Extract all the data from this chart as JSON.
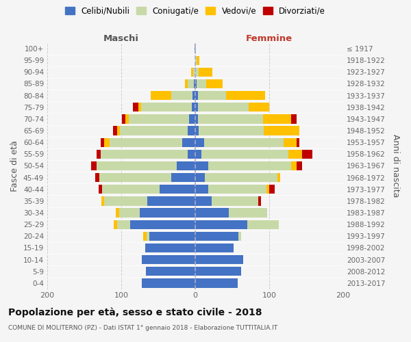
{
  "age_groups": [
    "0-4",
    "5-9",
    "10-14",
    "15-19",
    "20-24",
    "25-29",
    "30-34",
    "35-39",
    "40-44",
    "45-49",
    "50-54",
    "55-59",
    "60-64",
    "65-69",
    "70-74",
    "75-79",
    "80-84",
    "85-89",
    "90-94",
    "95-99",
    "100+"
  ],
  "birth_years": [
    "2013-2017",
    "2008-2012",
    "2003-2007",
    "1998-2002",
    "1993-1997",
    "1988-1992",
    "1983-1987",
    "1978-1982",
    "1973-1977",
    "1968-1972",
    "1963-1967",
    "1958-1962",
    "1953-1957",
    "1948-1952",
    "1943-1947",
    "1938-1942",
    "1933-1937",
    "1928-1932",
    "1923-1927",
    "1918-1922",
    "≤ 1917"
  ],
  "maschi": {
    "celibi": [
      72,
      67,
      72,
      68,
      62,
      88,
      75,
      65,
      48,
      32,
      25,
      10,
      18,
      10,
      8,
      5,
      4,
      2,
      0,
      0,
      1
    ],
    "coniugati": [
      0,
      0,
      0,
      0,
      4,
      18,
      28,
      58,
      78,
      98,
      108,
      118,
      98,
      92,
      82,
      68,
      28,
      8,
      3,
      0,
      0
    ],
    "vedovi": [
      0,
      0,
      0,
      0,
      4,
      4,
      4,
      4,
      0,
      0,
      0,
      0,
      7,
      4,
      4,
      4,
      28,
      4,
      3,
      0,
      0
    ],
    "divorziati": [
      0,
      0,
      0,
      0,
      0,
      0,
      0,
      0,
      5,
      5,
      8,
      5,
      5,
      5,
      5,
      7,
      0,
      0,
      0,
      0,
      0
    ]
  },
  "femmine": {
    "nubili": [
      57,
      62,
      65,
      52,
      58,
      70,
      45,
      22,
      18,
      13,
      18,
      8,
      12,
      5,
      4,
      4,
      4,
      2,
      0,
      0,
      0
    ],
    "coniugate": [
      0,
      0,
      0,
      0,
      4,
      43,
      52,
      63,
      78,
      98,
      112,
      118,
      107,
      88,
      88,
      68,
      38,
      13,
      5,
      2,
      0
    ],
    "vedove": [
      0,
      0,
      0,
      0,
      0,
      0,
      0,
      0,
      4,
      4,
      7,
      18,
      18,
      48,
      38,
      28,
      52,
      22,
      18,
      4,
      0
    ],
    "divorziate": [
      0,
      0,
      0,
      0,
      0,
      0,
      0,
      4,
      7,
      0,
      7,
      14,
      4,
      0,
      7,
      0,
      0,
      0,
      0,
      0,
      0
    ]
  },
  "colors": {
    "celibi_nubili": "#4472c4",
    "coniugati": "#c8d9a8",
    "vedovi": "#ffc000",
    "divorziati": "#c00000"
  },
  "xlim": 200,
  "title": "Popolazione per età, sesso e stato civile - 2018",
  "subtitle": "COMUNE DI MOLITERNO (PZ) - Dati ISTAT 1° gennaio 2018 - Elaborazione TUTTITALIA.IT",
  "xlabel_left": "Maschi",
  "xlabel_right": "Femmine",
  "ylabel_left": "Fasce di età",
  "ylabel_right": "Anni di nascita",
  "legend_labels": [
    "Celibi/Nubili",
    "Coniugati/e",
    "Vedovi/e",
    "Divorziati/e"
  ],
  "background_color": "#f5f5f5"
}
